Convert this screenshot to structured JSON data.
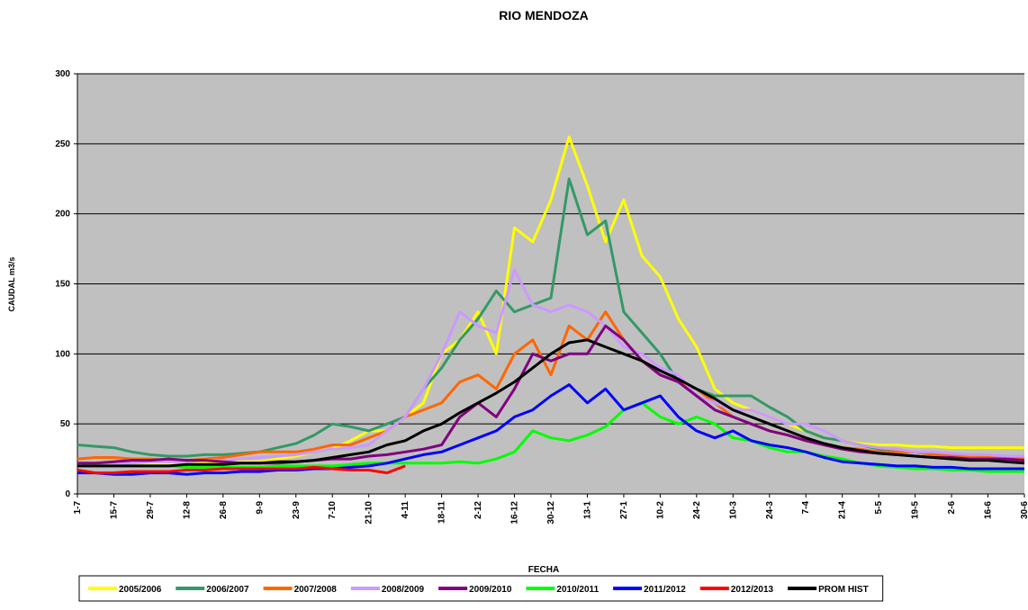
{
  "chart_data": {
    "type": "line",
    "title": "RIO MENDOZA",
    "x_label": "FECHA",
    "y_label": "CAUDAL m3/s",
    "categories": [
      "1-7",
      null,
      "15-7",
      null,
      "29-7",
      null,
      "12-8",
      null,
      "26-8",
      null,
      "9-9",
      null,
      "23-9",
      null,
      "7-10",
      null,
      "21-10",
      null,
      "4-11",
      null,
      "18-11",
      null,
      "2-12",
      null,
      "16-12",
      null,
      "30-12",
      null,
      "13-1",
      null,
      "27-1",
      null,
      "10-2",
      null,
      "24-2",
      null,
      "10-3",
      null,
      "24-3",
      null,
      "7-4",
      null,
      "21-4",
      null,
      "5-5",
      null,
      "19-5",
      null,
      "2-6",
      null,
      "16-6",
      null,
      "30-6"
    ],
    "ylim": [
      0,
      300
    ],
    "yticks": [
      0,
      50,
      100,
      150,
      200,
      250,
      300
    ],
    "grid": true,
    "background": "#c0c0c0",
    "legend": "bottom",
    "series": [
      {
        "name": "2005/2006",
        "color": "#ffff00",
        "values": [
          22,
          22,
          23,
          22,
          22,
          22,
          22,
          22,
          23,
          23,
          23,
          25,
          27,
          30,
          32,
          38,
          45,
          45,
          55,
          65,
          100,
          110,
          130,
          100,
          190,
          180,
          210,
          255,
          220,
          180,
          210,
          170,
          155,
          125,
          105,
          75,
          65,
          60,
          55,
          50,
          45,
          40,
          38,
          36,
          35,
          35,
          34,
          34,
          33,
          33,
          33,
          33,
          33
        ]
      },
      {
        "name": "2006/2007",
        "color": "#339966",
        "values": [
          35,
          34,
          33,
          30,
          28,
          27,
          27,
          28,
          28,
          29,
          30,
          33,
          36,
          42,
          50,
          48,
          45,
          50,
          55,
          75,
          90,
          110,
          125,
          145,
          130,
          135,
          140,
          225,
          185,
          195,
          130,
          115,
          100,
          80,
          75,
          70,
          70,
          70,
          62,
          55,
          45,
          40,
          38,
          35,
          32,
          30,
          30,
          28,
          27,
          27,
          26,
          25,
          25
        ]
      },
      {
        "name": "2007/2008",
        "color": "#ff6600",
        "values": [
          25,
          26,
          26,
          25,
          25,
          24,
          24,
          25,
          26,
          28,
          30,
          30,
          30,
          32,
          35,
          35,
          40,
          45,
          55,
          60,
          65,
          80,
          85,
          75,
          100,
          110,
          85,
          120,
          110,
          130,
          110,
          95,
          85,
          80,
          75,
          65,
          55,
          50,
          45,
          42,
          38,
          35,
          33,
          32,
          30,
          30,
          30,
          28,
          27,
          27,
          26,
          26,
          25
        ]
      },
      {
        "name": "2008/2009",
        "color": "#cc99ff",
        "values": [
          22,
          22,
          22,
          22,
          23,
          23,
          23,
          24,
          24,
          25,
          26,
          27,
          28,
          30,
          32,
          33,
          35,
          45,
          55,
          75,
          100,
          130,
          120,
          115,
          160,
          135,
          130,
          135,
          130,
          120,
          105,
          100,
          90,
          85,
          70,
          65,
          60,
          60,
          55,
          50,
          50,
          45,
          38,
          35,
          33,
          32,
          30,
          30,
          29,
          28,
          28,
          27,
          27
        ]
      },
      {
        "name": "2009/2010",
        "color": "#800080",
        "values": [
          22,
          22,
          23,
          24,
          24,
          25,
          24,
          24,
          23,
          22,
          22,
          22,
          23,
          24,
          25,
          25,
          27,
          28,
          30,
          32,
          35,
          55,
          65,
          55,
          75,
          100,
          95,
          100,
          100,
          120,
          110,
          95,
          85,
          80,
          70,
          60,
          55,
          50,
          45,
          42,
          38,
          35,
          32,
          30,
          29,
          28,
          27,
          26,
          26,
          25,
          25,
          25,
          24
        ]
      },
      {
        "name": "2010/2011",
        "color": "#00ff00",
        "values": [
          20,
          20,
          20,
          20,
          20,
          20,
          19,
          19,
          19,
          19,
          19,
          20,
          20,
          20,
          20,
          21,
          22,
          22,
          22,
          22,
          22,
          23,
          22,
          25,
          30,
          45,
          40,
          38,
          42,
          48,
          60,
          65,
          55,
          50,
          55,
          50,
          40,
          38,
          33,
          30,
          30,
          27,
          25,
          22,
          20,
          19,
          18,
          18,
          17,
          17,
          16,
          16,
          16
        ]
      },
      {
        "name": "2011/2012",
        "color": "#0000ff",
        "values": [
          15,
          15,
          14,
          14,
          15,
          15,
          14,
          15,
          15,
          16,
          16,
          17,
          17,
          18,
          18,
          19,
          20,
          22,
          25,
          28,
          30,
          35,
          40,
          45,
          55,
          60,
          70,
          78,
          65,
          75,
          60,
          65,
          70,
          55,
          45,
          40,
          45,
          38,
          35,
          33,
          30,
          26,
          23,
          22,
          21,
          20,
          20,
          19,
          19,
          18,
          18,
          18,
          18
        ]
      },
      {
        "name": "2012/2013",
        "color": "#ff0000",
        "values": [
          17,
          15,
          15,
          16,
          16,
          16,
          17,
          17,
          18,
          18,
          18,
          18,
          18,
          19,
          18,
          17,
          17,
          15,
          20,
          null,
          null,
          null,
          null,
          null,
          null,
          null,
          null,
          null,
          null,
          null,
          null,
          null,
          null,
          null,
          null,
          null,
          null,
          null,
          null,
          null,
          null,
          null,
          null,
          null,
          null,
          null,
          null,
          null,
          null,
          null,
          null,
          null,
          null
        ]
      },
      {
        "name": "PROM HIST",
        "color": "#000000",
        "values": [
          20,
          20,
          20,
          20,
          20,
          20,
          21,
          21,
          21,
          22,
          22,
          23,
          23,
          24,
          26,
          28,
          30,
          35,
          38,
          45,
          50,
          58,
          65,
          72,
          80,
          90,
          100,
          108,
          110,
          105,
          100,
          95,
          88,
          82,
          75,
          68,
          60,
          55,
          50,
          45,
          40,
          36,
          33,
          31,
          29,
          28,
          27,
          26,
          25,
          24,
          24,
          23,
          22
        ]
      }
    ]
  }
}
